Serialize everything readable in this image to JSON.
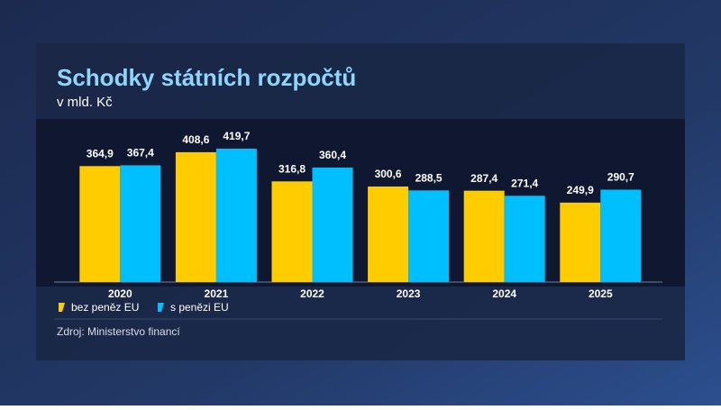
{
  "chart_data": {
    "type": "bar",
    "title": "Schodky státních rozpočtů",
    "subtitle": "v mld. Kč",
    "source": "Zdroj: Ministerstvo financí",
    "categories": [
      "2020",
      "2021",
      "2022",
      "2023",
      "2024",
      "2025"
    ],
    "series": [
      {
        "name": "bez peněz EU",
        "color": "#ffcc00",
        "values": [
          364.9,
          408.6,
          316.8,
          300.6,
          287.4,
          249.9
        ],
        "value_labels": [
          "364,9",
          "408,6",
          "316,8",
          "300,6",
          "287,4",
          "249,9"
        ]
      },
      {
        "name": "s penězi EU",
        "color": "#00bfff",
        "values": [
          367.4,
          419.7,
          360.4,
          288.5,
          271.4,
          290.7
        ],
        "value_labels": [
          "367,4",
          "419,7",
          "360,4",
          "288,5",
          "271,4",
          "290,7"
        ]
      }
    ]
  }
}
